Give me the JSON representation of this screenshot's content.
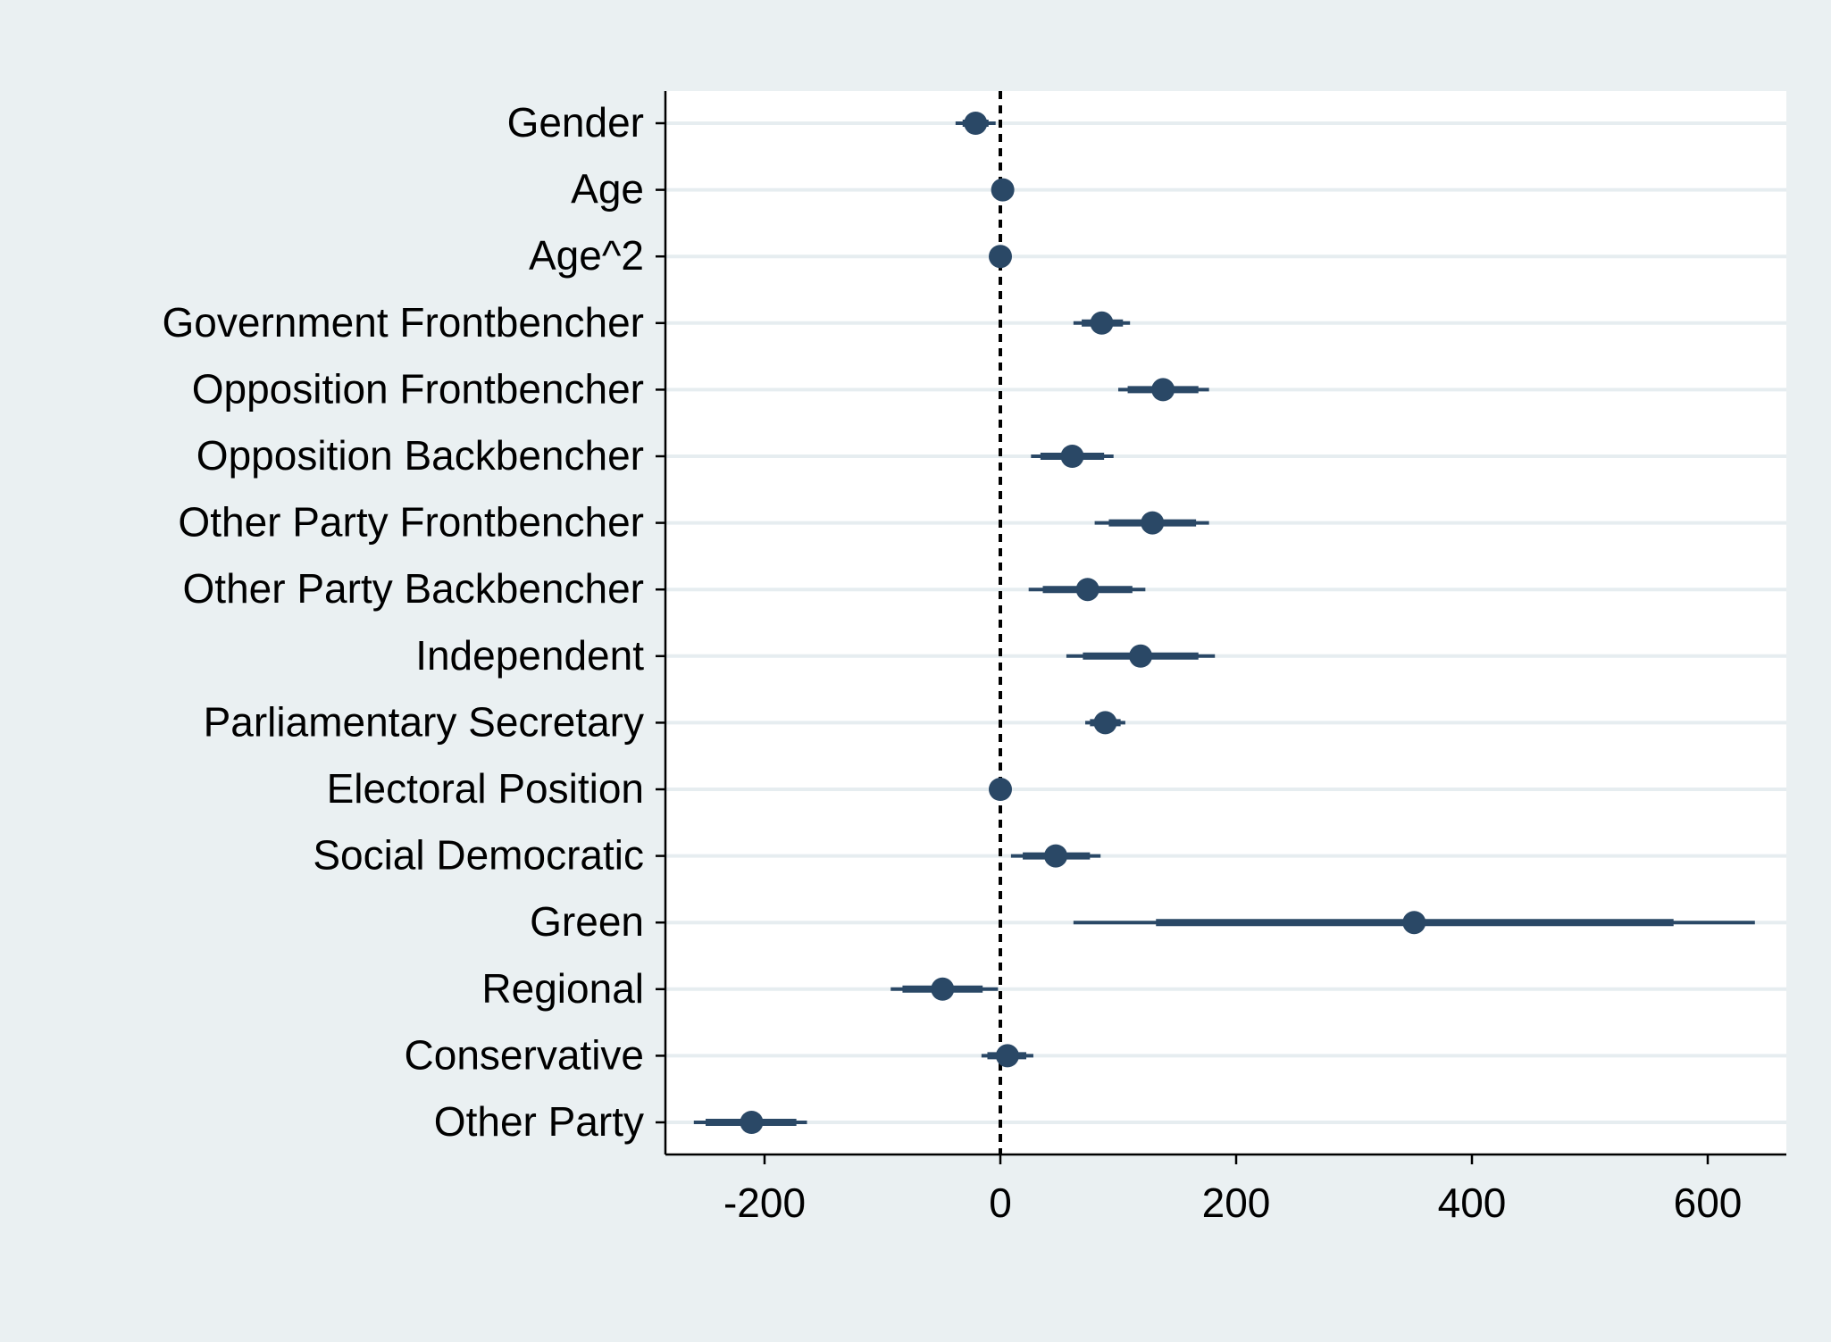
{
  "chart_data": {
    "type": "scatter",
    "subtype": "coefficient-plot",
    "title": "",
    "xlabel": "",
    "ylabel": "",
    "xlim": [
      -283,
      665
    ],
    "xticks": [
      -200,
      0,
      200,
      400,
      600
    ],
    "xtick_labels": [
      "-200",
      "0",
      "200",
      "400",
      "600"
    ],
    "reference_line": {
      "x": 0,
      "style": "dashed"
    },
    "grid": "horizontal",
    "legend": "none",
    "colors": {
      "marker": "#2a4866",
      "page_background": "#eaf0f2",
      "plot_background": "#ffffff",
      "gridline": "#e6edf0",
      "axis": "#000000"
    },
    "categories": [
      "Gender",
      "Age",
      "Age^2",
      "Government Frontbencher",
      "Opposition Frontbencher",
      "Opposition Backbencher",
      "Other Party Frontbencher",
      "Other Party Backbencher",
      "Independent",
      "Parliamentary Secretary",
      "Electoral Position",
      "Social Democratic",
      "Green",
      "Regional",
      "Conservative",
      "Other Party"
    ],
    "estimates": [
      -21,
      2,
      0,
      86,
      138,
      61,
      129,
      74,
      119,
      89,
      0,
      47,
      351,
      -49,
      6,
      -211
    ],
    "ci_inner": [
      [
        -32,
        -10
      ],
      [
        0,
        4
      ],
      [
        -1,
        1
      ],
      [
        69,
        104
      ],
      [
        108,
        168
      ],
      [
        34,
        88
      ],
      [
        92,
        166
      ],
      [
        36,
        112
      ],
      [
        70,
        168
      ],
      [
        76,
        102
      ],
      [
        -1,
        1
      ],
      [
        19,
        76
      ],
      [
        132,
        571
      ],
      [
        -83,
        -15
      ],
      [
        -11,
        22
      ],
      [
        -250,
        -173
      ]
    ],
    "ci_outer": [
      [
        -38,
        -4
      ],
      [
        -1,
        5
      ],
      [
        -2,
        2
      ],
      [
        62,
        110
      ],
      [
        100,
        177
      ],
      [
        26,
        96
      ],
      [
        80,
        177
      ],
      [
        24,
        123
      ],
      [
        56,
        182
      ],
      [
        72,
        106
      ],
      [
        -2,
        2
      ],
      [
        9,
        85
      ],
      [
        62,
        640
      ],
      [
        -93,
        -2
      ],
      [
        -16,
        28
      ],
      [
        -260,
        -164
      ]
    ]
  }
}
